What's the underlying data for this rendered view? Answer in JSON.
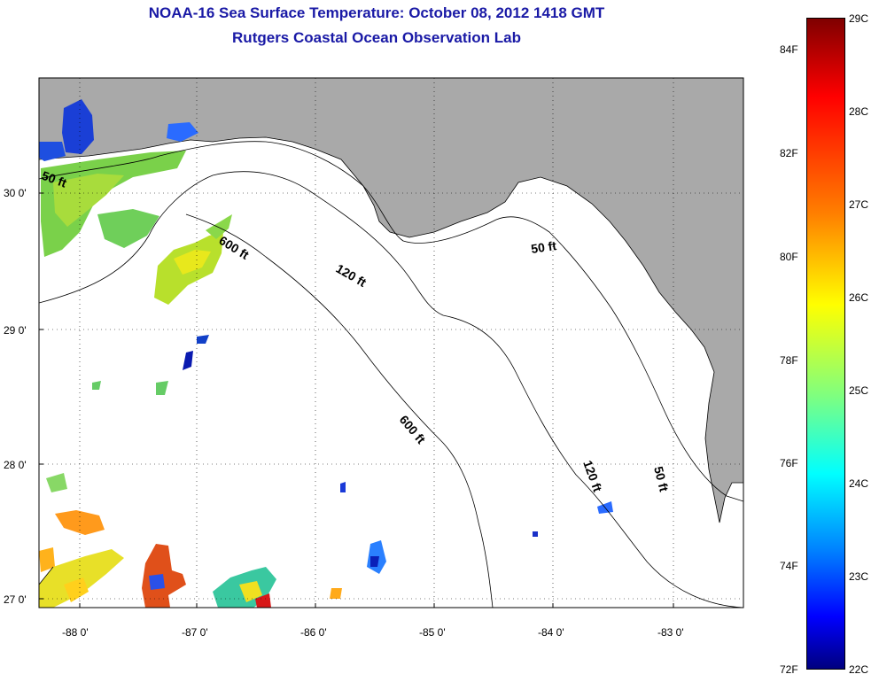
{
  "title": {
    "line1": "NOAA-16 Sea Surface Temperature:  October 08, 2012 1418 GMT",
    "line2": "Rutgers Coastal Ocean Observation Lab"
  },
  "colors": {
    "title": "#1a1aa6",
    "land": "#a9a9a9",
    "ocean": "#ffffff"
  },
  "map": {
    "lon_ticks": [
      "-88 0'",
      "-87 0'",
      "-86 0'",
      "-85 0'",
      "-84 0'",
      "-83 0'"
    ],
    "lat_ticks": [
      "30 0'",
      "29 0'",
      "28 0'",
      "27 0'"
    ],
    "contour_labels": [
      "50 ft",
      "600 ft",
      "120 ft",
      "50 ft",
      "600 ft",
      "120 ft",
      "50 ft"
    ]
  },
  "colorbar": {
    "celsius": [
      "29C",
      "28C",
      "27C",
      "26C",
      "25C",
      "24C",
      "23C",
      "22C"
    ],
    "fahrenheit": [
      "84F",
      "82F",
      "80F",
      "78F",
      "76F",
      "74F",
      "72F"
    ]
  }
}
